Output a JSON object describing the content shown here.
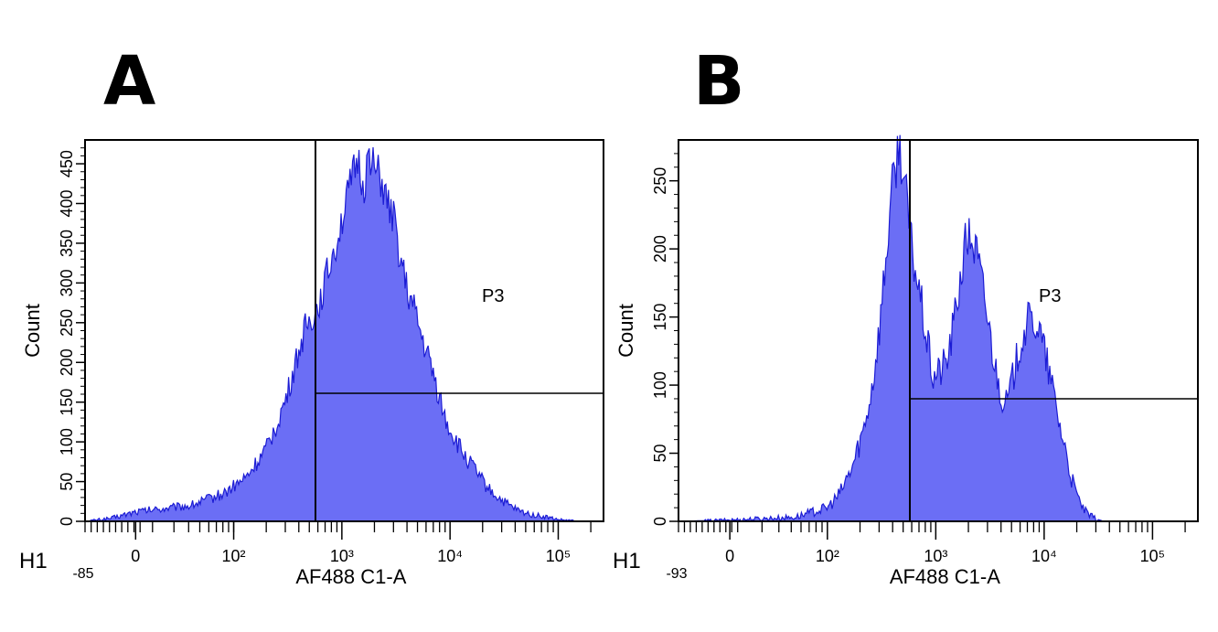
{
  "chart_data": [
    {
      "type": "histogram",
      "panel_label": "A",
      "histogram_title": "H1",
      "xlabel": "AF488 C1-A",
      "ylabel": "Count",
      "x_scale": "biexponential",
      "x_min_label": "-85",
      "x_tick_labels": [
        "0",
        "10²",
        "10³",
        "10⁴",
        "10⁵"
      ],
      "ylim": [
        0,
        480
      ],
      "y_ticks": [
        0,
        50,
        100,
        150,
        200,
        250,
        300,
        350,
        400,
        450
      ],
      "gate_label": "P3",
      "gate_start": "10³",
      "fill_color": "#6b6ef5",
      "line_color": "#1c1cd4",
      "profile": [
        [
          -85,
          0
        ],
        [
          -40,
          4
        ],
        [
          0,
          12
        ],
        [
          40,
          20
        ],
        [
          80,
          35
        ],
        [
          130,
          55
        ],
        [
          200,
          90
        ],
        [
          300,
          150
        ],
        [
          450,
          240
        ],
        [
          600,
          270
        ],
        [
          800,
          330
        ],
        [
          1000,
          380
        ],
        [
          1200,
          420
        ],
        [
          1400,
          455
        ],
        [
          1600,
          420
        ],
        [
          1800,
          470
        ],
        [
          2000,
          440
        ],
        [
          2300,
          430
        ],
        [
          2600,
          400
        ],
        [
          3000,
          380
        ],
        [
          3500,
          330
        ],
        [
          4000,
          290
        ],
        [
          4800,
          260
        ],
        [
          5500,
          230
        ],
        [
          6500,
          200
        ],
        [
          7500,
          170
        ],
        [
          9000,
          130
        ],
        [
          10500,
          110
        ],
        [
          12000,
          95
        ],
        [
          14000,
          80
        ],
        [
          16000,
          70
        ],
        [
          19000,
          55
        ],
        [
          23000,
          40
        ],
        [
          28000,
          30
        ],
        [
          35000,
          20
        ],
        [
          45000,
          12
        ],
        [
          60000,
          8
        ],
        [
          80000,
          5
        ],
        [
          100000,
          2
        ],
        [
          130000,
          1
        ],
        [
          160000,
          0
        ]
      ]
    },
    {
      "type": "histogram",
      "panel_label": "B",
      "histogram_title": "H1",
      "xlabel": "AF488 C1-A",
      "ylabel": "Count",
      "x_scale": "biexponential",
      "x_min_label": "-93",
      "x_tick_labels": [
        "0",
        "10²",
        "10³",
        "10⁴",
        "10⁵"
      ],
      "ylim": [
        0,
        280
      ],
      "y_ticks": [
        0,
        50,
        100,
        150,
        200,
        250
      ],
      "gate_label": "P3",
      "gate_start": "10³",
      "fill_color": "#6b6ef5",
      "line_color": "#1c1cd4",
      "profile": [
        [
          -93,
          0
        ],
        [
          0,
          1
        ],
        [
          50,
          3
        ],
        [
          100,
          10
        ],
        [
          130,
          20
        ],
        [
          170,
          40
        ],
        [
          220,
          70
        ],
        [
          260,
          100
        ],
        [
          300,
          140
        ],
        [
          340,
          185
        ],
        [
          380,
          230
        ],
        [
          430,
          265
        ],
        [
          470,
          275
        ],
        [
          520,
          245
        ],
        [
          600,
          200
        ],
        [
          700,
          170
        ],
        [
          800,
          140
        ],
        [
          900,
          115
        ],
        [
          950,
          105
        ],
        [
          1000,
          108
        ],
        [
          1100,
          110
        ],
        [
          1300,
          120
        ],
        [
          1500,
          150
        ],
        [
          1700,
          180
        ],
        [
          1900,
          205
        ],
        [
          2100,
          210
        ],
        [
          2400,
          195
        ],
        [
          2800,
          165
        ],
        [
          3200,
          135
        ],
        [
          3600,
          110
        ],
        [
          4000,
          95
        ],
        [
          4500,
          85
        ],
        [
          5000,
          100
        ],
        [
          6000,
          130
        ],
        [
          7000,
          145
        ],
        [
          8000,
          148
        ],
        [
          9000,
          140
        ],
        [
          10000,
          125
        ],
        [
          11000,
          110
        ],
        [
          12500,
          90
        ],
        [
          14000,
          70
        ],
        [
          16000,
          50
        ],
        [
          18000,
          30
        ],
        [
          21000,
          15
        ],
        [
          25000,
          5
        ],
        [
          30000,
          2
        ],
        [
          35000,
          0
        ]
      ]
    }
  ]
}
